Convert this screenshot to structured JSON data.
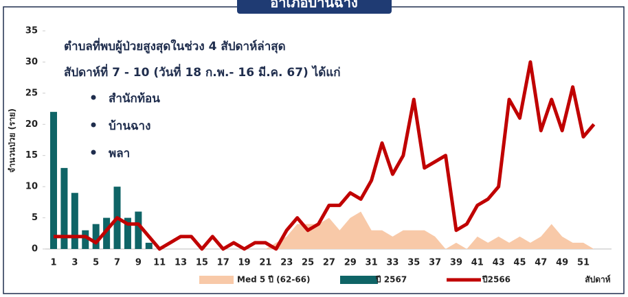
{
  "chart_data": {
    "type": "combo",
    "title": "อำเภอบ้านฉาง",
    "y_label": "จำนวนป่วย (ราย)",
    "x_label": "สัปดาห์",
    "annotations": [
      "ตำบลที่พบผู้ป่วยสูงสุดในช่วง 4 สัปดาห์ล่าสุด",
      "สัปดาห์ที่ 7 - 10 (วันที่ 18 ก.พ.- 16 มี.ค. 67) ได้แก่"
    ],
    "bullets": [
      "สำนักท้อน",
      "บ้านฉาง",
      "พลา"
    ],
    "categories": [
      1,
      null,
      3,
      null,
      5,
      null,
      7,
      null,
      9,
      null,
      11,
      null,
      13,
      null,
      15,
      null,
      17,
      null,
      19,
      null,
      21,
      null,
      23,
      null,
      25,
      null,
      27,
      null,
      29,
      null,
      31,
      null,
      33,
      null,
      35,
      null,
      37,
      null,
      39,
      null,
      41,
      null,
      43,
      null,
      45,
      null,
      47,
      null,
      49,
      null,
      51,
      null
    ],
    "series": [
      {
        "name": "Med 5 ปี (62-66)",
        "kind": "area",
        "color": "#f8c9a8",
        "values": [
          0,
          0,
          0,
          0,
          0,
          0,
          0,
          0,
          0,
          0,
          0,
          0,
          0,
          0,
          0,
          0,
          0,
          0,
          0,
          0,
          0,
          1,
          2,
          4,
          4,
          4,
          5,
          3,
          5,
          6,
          3,
          3,
          2,
          3,
          3,
          3,
          2,
          0,
          1,
          0,
          2,
          1,
          2,
          1,
          2,
          1,
          2,
          4,
          2,
          1,
          1,
          0
        ]
      },
      {
        "name": "ปี 2567",
        "kind": "bar",
        "color": "#0f6466",
        "values": [
          22,
          13,
          9,
          3,
          4,
          5,
          10,
          5,
          6,
          1,
          null,
          null,
          null,
          null,
          null,
          null,
          null,
          null,
          null,
          null,
          null,
          null,
          null,
          null,
          null,
          null,
          null,
          null,
          null,
          null,
          null,
          null,
          null,
          null,
          null,
          null,
          null,
          null,
          null,
          null,
          null,
          null,
          null,
          null,
          null,
          null,
          null,
          null,
          null,
          null,
          null,
          null
        ]
      },
      {
        "name": "ปี2566",
        "kind": "line",
        "color": "#c00000",
        "values": [
          2,
          2,
          2,
          2,
          1,
          3,
          5,
          4,
          4,
          2,
          0,
          1,
          2,
          2,
          0,
          2,
          0,
          1,
          0,
          1,
          1,
          0,
          3,
          5,
          3,
          4,
          7,
          7,
          9,
          8,
          11,
          17,
          12,
          15,
          24,
          13,
          14,
          15,
          3,
          4,
          7,
          8,
          10,
          24,
          21,
          30,
          19,
          24,
          19,
          26,
          18,
          20
        ]
      }
    ],
    "ylim": [
      0,
      35
    ],
    "yticks": [
      0,
      5,
      10,
      15,
      20,
      25,
      30,
      35
    ],
    "grid": false
  }
}
